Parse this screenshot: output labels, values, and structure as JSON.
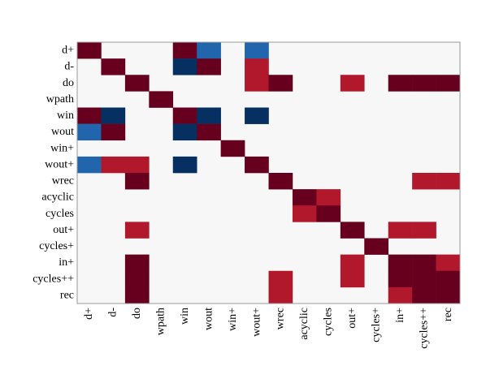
{
  "chart_data": {
    "type": "heatmap",
    "title": "",
    "xlabel": "",
    "ylabel": "",
    "row_labels": [
      "d+",
      "d-",
      "do",
      "wpath",
      "win",
      "wout",
      "win+",
      "wout+",
      "wrec",
      "acyclic",
      "cycles",
      "out+",
      "cycles+",
      "in+",
      "cycles++",
      "rec"
    ],
    "col_labels": [
      "d+",
      "d-",
      "do",
      "wpath",
      "win",
      "wout",
      "win+",
      "wout+",
      "wrec",
      "acyclic",
      "cycles",
      "out+",
      "cycles+",
      "in+",
      "cycles++",
      "rec"
    ],
    "value_range": [
      -1,
      1
    ],
    "colors": {
      "strong_positive": "#67001f",
      "positive": "#b2182b",
      "neutral": "#f7f7f7",
      "negative": "#2166ac",
      "strong_negative": "#053061",
      "border": "#999999"
    },
    "values": [
      [
        1,
        0,
        0,
        0,
        1,
        -0.6,
        0,
        -0.6,
        0,
        0,
        0,
        0,
        0,
        0,
        0,
        0
      ],
      [
        0,
        1,
        0,
        0,
        -1,
        1,
        0,
        0.7,
        0,
        0,
        0,
        0,
        0,
        0,
        0,
        0
      ],
      [
        0,
        0,
        1,
        0,
        0,
        0,
        0,
        0.7,
        1,
        0,
        0,
        0.7,
        0,
        1,
        1,
        1
      ],
      [
        0,
        0,
        0,
        1,
        0,
        0,
        0,
        0,
        0,
        0,
        0,
        0,
        0,
        0,
        0,
        0
      ],
      [
        1,
        -1,
        0,
        0,
        1,
        -1,
        0,
        -1,
        0,
        0,
        0,
        0,
        0,
        0,
        0,
        0
      ],
      [
        -0.6,
        1,
        0,
        0,
        -1,
        1,
        0,
        0,
        0,
        0,
        0,
        0,
        0,
        0,
        0,
        0
      ],
      [
        0,
        0,
        0,
        0,
        0,
        0,
        1,
        0,
        0,
        0,
        0,
        0,
        0,
        0,
        0,
        0
      ],
      [
        -0.6,
        0.7,
        0.7,
        0,
        -1,
        0,
        0,
        1,
        0,
        0,
        0,
        0,
        0,
        0,
        0,
        0
      ],
      [
        0,
        0,
        1,
        0,
        0,
        0,
        0,
        0,
        1,
        0,
        0,
        0,
        0,
        0,
        0.7,
        0.7
      ],
      [
        0,
        0,
        0,
        0,
        0,
        0,
        0,
        0,
        0,
        1,
        0.7,
        0,
        0,
        0,
        0,
        0
      ],
      [
        0,
        0,
        0,
        0,
        0,
        0,
        0,
        0,
        0,
        0.7,
        1,
        0,
        0,
        0,
        0,
        0
      ],
      [
        0,
        0,
        0.7,
        0,
        0,
        0,
        0,
        0,
        0,
        0,
        0,
        1,
        0,
        0.7,
        0.7,
        0
      ],
      [
        0,
        0,
        0,
        0,
        0,
        0,
        0,
        0,
        0,
        0,
        0,
        0,
        1,
        0,
        0,
        0
      ],
      [
        0,
        0,
        1,
        0,
        0,
        0,
        0,
        0,
        0,
        0,
        0,
        0.7,
        0,
        1,
        1,
        0.7
      ],
      [
        0,
        0,
        1,
        0,
        0,
        0,
        0,
        0,
        0.7,
        0,
        0,
        0.7,
        0,
        1,
        1,
        1
      ],
      [
        0,
        0,
        1,
        0,
        0,
        0,
        0,
        0,
        0.7,
        0,
        0,
        0,
        0,
        0.7,
        1,
        1
      ]
    ]
  }
}
